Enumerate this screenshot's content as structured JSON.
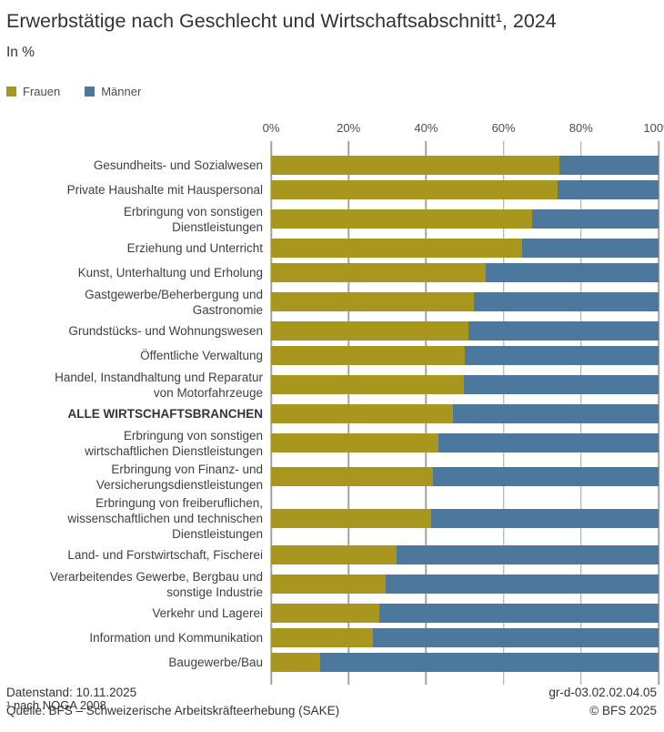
{
  "header": {
    "title": "Erwerbstätige nach Geschlecht und Wirtschaftsabschnitt¹, 2024",
    "subtitle": "In %"
  },
  "legend": [
    {
      "label": "Frauen",
      "color": "#A8961E"
    },
    {
      "label": "Männer",
      "color": "#4D789E"
    }
  ],
  "chart_data": {
    "type": "bar",
    "stacked": true,
    "orientation": "horizontal",
    "unit": "%",
    "xlim": [
      0,
      100
    ],
    "x_ticks": [
      "0%",
      "20%",
      "40%",
      "60%",
      "80%",
      "100%"
    ],
    "grid": true,
    "legend_position": "top-left",
    "emphasis_index": 9,
    "categories": [
      "Gesundheits- und Sozialwesen",
      "Private Haushalte mit Hauspersonal",
      "Erbringung von sonstigen\nDienstleistungen",
      "Erziehung und Unterricht",
      "Kunst, Unterhaltung und Erholung",
      "Gastgewerbe/Beherbergung und\nGastronomie",
      "Grundstücks- und Wohnungswesen",
      "Öffentliche Verwaltung",
      "Handel, Instandhaltung und Reparatur\nvon Motorfahrzeuge",
      "ALLE WIRTSCHAFTSBRANCHEN",
      "Erbringung von sonstigen\nwirtschaftlichen Dienstleistungen",
      "Erbringung von Finanz- und\nVersicherungsdienstleistungen",
      "Erbringung von freiberuflichen,\nwissenschaftlichen und technischen\nDienstleistungen",
      "Land- und Forstwirtschaft, Fischerei",
      "Verarbeitendes Gewerbe, Bergbau und\nsonstige Industrie",
      "Verkehr und Lagerei",
      "Information und Kommunikation",
      "Baugewerbe/Bau"
    ],
    "series": [
      {
        "name": "Frauen",
        "color": "#A8961E",
        "values": [
          74.3,
          74.0,
          67.3,
          64.7,
          55.4,
          52.3,
          50.9,
          49.9,
          49.7,
          47.0,
          43.1,
          41.8,
          41.4,
          32.4,
          29.5,
          28.0,
          26.2,
          12.7
        ]
      },
      {
        "name": "Männer",
        "color": "#4D789E",
        "values": [
          25.7,
          26.0,
          32.7,
          35.3,
          44.6,
          47.7,
          49.1,
          50.1,
          50.3,
          53.0,
          56.9,
          58.2,
          58.6,
          67.6,
          70.5,
          72.0,
          73.8,
          87.3
        ]
      }
    ],
    "gridline_color": "#A3A3A3"
  },
  "footnote": "¹ nach NOGA 2008",
  "footer": {
    "datenstand": "Datenstand: 10.11.2025",
    "quelle": "Quelle: BFS – Schweizerische Arbeitskräfteerhebung (SAKE)",
    "graph_id": "gr-d-03.02.02.04.05",
    "copyright": "© BFS 2025"
  }
}
